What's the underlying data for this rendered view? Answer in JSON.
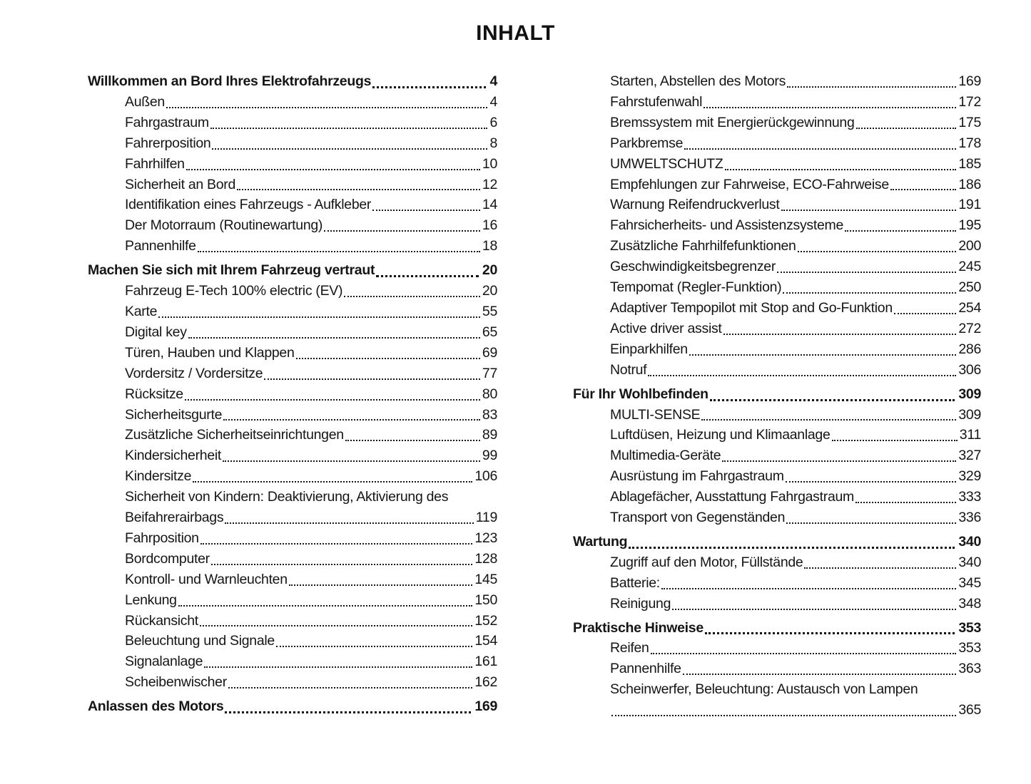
{
  "title": "INHALT",
  "colors": {
    "text": "#151515",
    "background": "#ffffff"
  },
  "columns": {
    "left": [
      {
        "label": "Willkommen an Bord Ihres Elektrofahrzeugs",
        "page": "4",
        "bold": true
      },
      {
        "label": "Außen",
        "page": "4"
      },
      {
        "label": "Fahrgastraum",
        "page": "6"
      },
      {
        "label": "Fahrerposition",
        "page": "8"
      },
      {
        "label": "Fahrhilfen",
        "page": "10"
      },
      {
        "label": "Sicherheit an Bord",
        "page": "12"
      },
      {
        "label": "Identifikation eines Fahrzeugs - Aufkleber",
        "page": "14"
      },
      {
        "label": "Der Motorraum (Routinewartung)",
        "page": "16"
      },
      {
        "label": "Pannenhilfe",
        "page": "18"
      },
      {
        "label": "Machen Sie sich mit Ihrem Fahrzeug vertraut",
        "page": "20",
        "bold": true
      },
      {
        "label": "Fahrzeug E-Tech 100% electric (EV)",
        "page": "20"
      },
      {
        "label": "Karte",
        "page": "55"
      },
      {
        "label": "Digital key",
        "page": "65"
      },
      {
        "label": "Türen, Hauben und Klappen",
        "page": "69"
      },
      {
        "label": "Vordersitz / Vordersitze",
        "page": "77"
      },
      {
        "label": "Rücksitze",
        "page": "80"
      },
      {
        "label": "Sicherheitsgurte",
        "page": "83"
      },
      {
        "label": "Zusätzliche Sicherheitseinrichtungen",
        "page": "89"
      },
      {
        "label": "Kindersicherheit",
        "page": "99"
      },
      {
        "label": "Kindersitze",
        "page": "106"
      },
      {
        "pre": "Sicherheit von Kindern: Deaktivierung, Aktivierung des",
        "label": "Beifahrerairbags",
        "page": "119"
      },
      {
        "label": "Fahrposition",
        "page": "123"
      },
      {
        "label": "Bordcomputer",
        "page": "128"
      },
      {
        "label": "Kontroll- und Warnleuchten",
        "page": "145"
      },
      {
        "label": "Lenkung",
        "page": "150"
      },
      {
        "label": "Rückansicht",
        "page": "152"
      },
      {
        "label": "Beleuchtung und Signale",
        "page": "154"
      },
      {
        "label": "Signalanlage",
        "page": "161"
      },
      {
        "label": "Scheibenwischer",
        "page": "162"
      },
      {
        "label": "Anlassen des Motors",
        "page": "169",
        "bold": true
      }
    ],
    "right": [
      {
        "label": "Starten, Abstellen des Motors",
        "page": "169"
      },
      {
        "label": "Fahrstufenwahl",
        "page": "172"
      },
      {
        "label": "Bremssystem mit Energierückgewinnung",
        "page": "175"
      },
      {
        "label": "Parkbremse",
        "page": "178"
      },
      {
        "label": "UMWELTSCHUTZ",
        "page": "185"
      },
      {
        "label": "Empfehlungen zur Fahrweise, ECO-Fahrweise",
        "page": "186"
      },
      {
        "label": "Warnung Reifendruckverlust",
        "page": "191"
      },
      {
        "label": "Fahrsicherheits- und Assistenzsysteme",
        "page": "195"
      },
      {
        "label": "Zusätzliche Fahrhilfefunktionen",
        "page": "200"
      },
      {
        "label": "Geschwindigkeitsbegrenzer",
        "page": "245"
      },
      {
        "label": "Tempomat (Regler-Funktion)",
        "page": "250"
      },
      {
        "label": "Adaptiver Tempopilot mit Stop and Go-Funktion",
        "page": "254"
      },
      {
        "label": "Active driver assist",
        "page": "272"
      },
      {
        "label": "Einparkhilfen",
        "page": "286"
      },
      {
        "label": "Notruf",
        "page": "306"
      },
      {
        "label": "Für Ihr Wohlbefinden",
        "page": "309",
        "bold": true
      },
      {
        "label": "MULTI-SENSE",
        "page": "309"
      },
      {
        "label": "Luftdüsen, Heizung und Klimaanlage",
        "page": "311"
      },
      {
        "label": "Multimedia-Geräte",
        "page": "327"
      },
      {
        "label": "Ausrüstung im Fahrgastraum",
        "page": "329"
      },
      {
        "label": "Ablagefächer, Ausstattung Fahrgastraum",
        "page": "333"
      },
      {
        "label": "Transport von Gegenständen",
        "page": "336"
      },
      {
        "label": "Wartung",
        "page": "340",
        "bold": true
      },
      {
        "label": "Zugriff auf den Motor, Füllstände",
        "page": "340"
      },
      {
        "label": "Batterie:",
        "page": "345"
      },
      {
        "label": "Reinigung",
        "page": "348"
      },
      {
        "label": "Praktische Hinweise",
        "page": "353",
        "bold": true
      },
      {
        "label": "Reifen",
        "page": "353"
      },
      {
        "label": "Pannenhilfe",
        "page": "363"
      },
      {
        "label": "Scheinwerfer, Beleuchtung: Austausch von Lampen",
        "page": "365",
        "wrap": true
      }
    ]
  }
}
